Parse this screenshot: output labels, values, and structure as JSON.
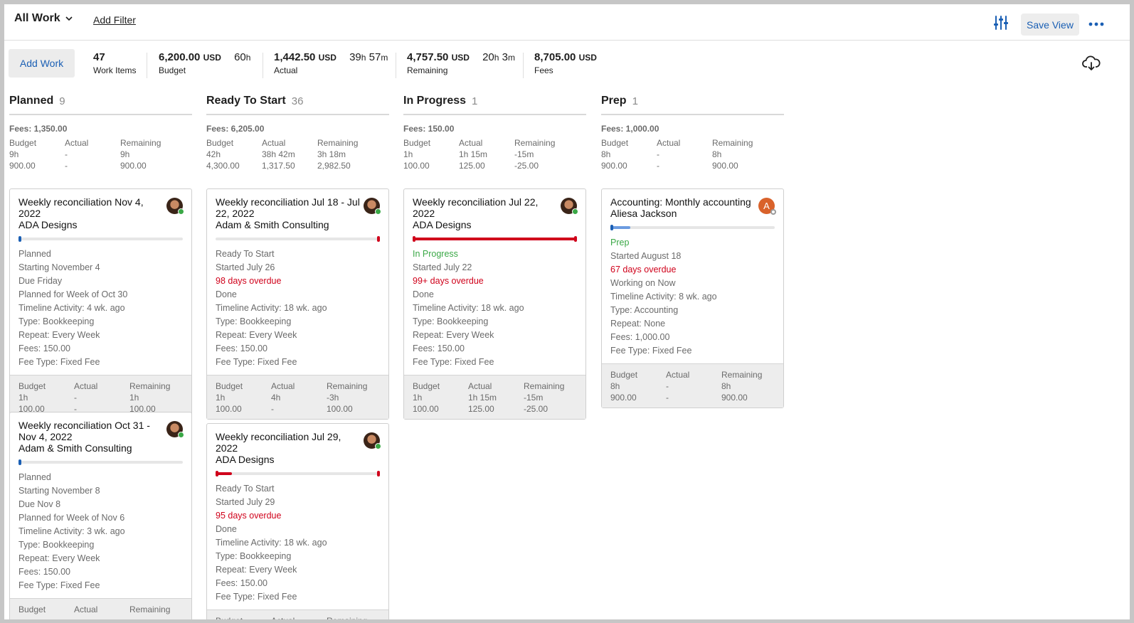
{
  "header": {
    "view_name": "All Work",
    "add_filter": "Add Filter",
    "save_view": "Save View"
  },
  "summary": {
    "add_work": "Add Work",
    "work_items_value": "47",
    "work_items_label": "Work Items",
    "budget_value": "6,200.00",
    "budget_unit": "USD",
    "budget_hours": "60",
    "budget_hours_unit": "h",
    "budget_label": "Budget",
    "actual_value": "1,442.50",
    "actual_unit": "USD",
    "actual_h": "39",
    "actual_h_unit": "h",
    "actual_m": "57",
    "actual_m_unit": "m",
    "actual_label": "Actual",
    "remaining_value": "4,757.50",
    "remaining_unit": "USD",
    "remaining_h": "20",
    "remaining_h_unit": "h",
    "remaining_m": "3",
    "remaining_m_unit": "m",
    "remaining_label": "Remaining",
    "fees_value": "8,705.00",
    "fees_unit": "USD",
    "fees_label": "Fees"
  },
  "columns": [
    {
      "name": "Planned",
      "count": "9",
      "fees": "Fees: 1,350.00",
      "totals": [
        "Budget",
        "Actual",
        "Remaining",
        "9h",
        "-",
        "9h",
        "900.00",
        "-",
        "900.00"
      ],
      "cards": [
        {
          "title": "Weekly reconciliation Nov 4, 2022",
          "client": "ADA Designs",
          "progress_color": "#1a5fb4",
          "progress": 0.0,
          "details": [
            "Planned",
            "Starting November 4",
            "Due Friday",
            "Planned for Week of Oct 30",
            "Timeline Activity: 4 wk. ago",
            "Type: Bookkeeping",
            "Repeat: Every Week",
            "Fees: 150.00",
            "Fee Type: Fixed Fee"
          ],
          "footer": [
            "Budget",
            "Actual",
            "Remaining",
            "1h",
            "-",
            "1h",
            "100.00",
            "-",
            "100.00"
          ]
        },
        {
          "title": "Weekly reconciliation Oct 31 - Nov 4, 2022",
          "client": "Adam & Smith Consulting",
          "progress_color": "#1a5fb4",
          "progress": 0.0,
          "details": [
            "Planned",
            "Starting November 8",
            "Due Nov 8",
            "Planned for Week of Nov 6",
            "Timeline Activity: 3 wk. ago",
            "Type: Bookkeeping",
            "Repeat: Every Week",
            "Fees: 150.00",
            "Fee Type: Fixed Fee"
          ],
          "footer": [
            "Budget",
            "Actual",
            "Remaining",
            "",
            "",
            "",
            "",
            "",
            ""
          ]
        }
      ]
    },
    {
      "name": "Ready To Start",
      "count": "36",
      "fees": "Fees: 6,205.00",
      "totals": [
        "Budget",
        "Actual",
        "Remaining",
        "42h",
        "38h 42m",
        "3h 18m",
        "4,300.00",
        "1,317.50",
        "2,982.50"
      ],
      "cards": [
        {
          "title": "Weekly reconciliation Jul 18 - Jul 22, 2022",
          "client": "Adam & Smith Consulting",
          "progress_color": "#d0021b",
          "progress": 0.0,
          "details": [
            "Ready To Start",
            "Started July 26",
            "98 days overdue",
            "Done",
            "Timeline Activity: 18 wk. ago",
            "Type: Bookkeeping",
            "Repeat: Every Week",
            "Fees: 150.00",
            "Fee Type: Fixed Fee"
          ],
          "footer": [
            "Budget",
            "Actual",
            "Remaining",
            "1h",
            "4h",
            "-3h",
            "100.00",
            "-",
            "100.00"
          ]
        },
        {
          "title": "Weekly reconciliation Jul 29, 2022",
          "client": "ADA Designs",
          "progress_color": "#d0021b",
          "progress": 0.1,
          "details": [
            "Ready To Start",
            "Started July 29",
            "95 days overdue",
            "Done",
            "Timeline Activity: 18 wk. ago",
            "Type: Bookkeeping",
            "Repeat: Every Week",
            "Fees: 150.00",
            "Fee Type: Fixed Fee"
          ],
          "footer": [
            "Budget",
            "Actual",
            "Remaining",
            "",
            "",
            "",
            "",
            "",
            ""
          ]
        }
      ]
    },
    {
      "name": "In Progress",
      "count": "1",
      "fees": "Fees: 150.00",
      "totals": [
        "Budget",
        "Actual",
        "Remaining",
        "1h",
        "1h 15m",
        "-15m",
        "100.00",
        "125.00",
        "-25.00"
      ],
      "cards": [
        {
          "title": "Weekly reconciliation Jul 22, 2022",
          "client": "ADA Designs",
          "progress_color": "#d0021b",
          "progress": 1.0,
          "details": [
            "In Progress",
            "Started July 22",
            "99+ days overdue",
            "Done",
            "Timeline Activity: 18 wk. ago",
            "Type: Bookkeeping",
            "Repeat: Every Week",
            "Fees: 150.00",
            "Fee Type: Fixed Fee"
          ],
          "footer": [
            "Budget",
            "Actual",
            "Remaining",
            "1h",
            "1h 15m",
            "-15m",
            "100.00",
            "125.00",
            "-25.00"
          ]
        }
      ]
    },
    {
      "name": "Prep",
      "count": "1",
      "fees": "Fees: 1,000.00",
      "totals": [
        "Budget",
        "Actual",
        "Remaining",
        "8h",
        "-",
        "8h",
        "900.00",
        "-",
        "900.00"
      ],
      "cards": [
        {
          "title": "Accounting: Monthly accounting",
          "client": "Aliesa Jackson",
          "avatar_letter": "A",
          "progress_color": "#6b9be0",
          "progress": 0.12,
          "details": [
            "Prep",
            "Started August 18",
            "67 days overdue",
            "Working on Now",
            "Timeline Activity: 8 wk. ago",
            "Type: Accounting",
            "Repeat: None",
            "Fees: 1,000.00",
            "Fee Type: Fixed Fee"
          ],
          "footer": [
            "Budget",
            "Actual",
            "Remaining",
            "8h",
            "-",
            "8h",
            "900.00",
            "-",
            "900.00"
          ]
        }
      ]
    }
  ]
}
